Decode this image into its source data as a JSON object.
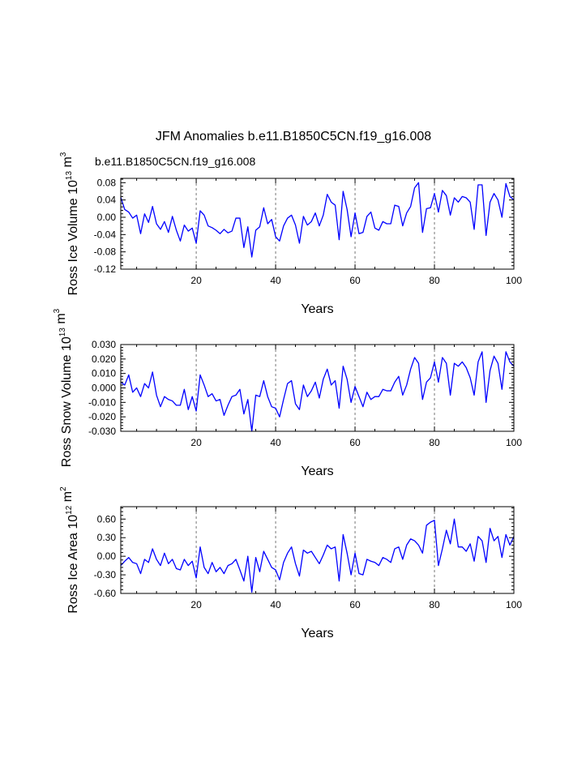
{
  "figure": {
    "title": "JFM Anomalies b.e11.B1850C5CN.f19_g16.008",
    "case_label": "b.e11.B1850C5CN.f19_g16.008",
    "case_label_color": "#0000ff",
    "line_color": "#0000ff"
  },
  "chart_data": [
    {
      "type": "line",
      "name": "ross-ice-volume",
      "title": "",
      "xlabel": "Years",
      "ylabel": "Ross Ice Volume",
      "yunit_prefix": "10",
      "yunit_exp": "13",
      "yunit_base": "m",
      "yunit_base_exp": "3",
      "xlim": [
        1,
        100
      ],
      "ylim": [
        -0.12,
        0.09
      ],
      "xticks": [
        20,
        40,
        60,
        80,
        100
      ],
      "yticks": [
        0.08,
        0.04,
        0.0,
        -0.04,
        -0.08,
        -0.12
      ],
      "ytick_labels": [
        "0.08",
        "0.04",
        "0.00",
        "-0.04",
        "-0.08",
        "-0.12"
      ],
      "vgrid": [
        20,
        40,
        60,
        80
      ],
      "series": [
        {
          "name": "b.e11.B1850C5CN.f19_g16.008",
          "values": [
            0.046,
            0.018,
            0.012,
            -0.002,
            0.005,
            -0.038,
            0.008,
            -0.012,
            0.025,
            -0.015,
            -0.028,
            -0.01,
            -0.035,
            0.002,
            -0.03,
            -0.055,
            -0.018,
            -0.032,
            -0.025,
            -0.06,
            0.015,
            0.005,
            -0.02,
            -0.024,
            -0.03,
            -0.038,
            -0.028,
            -0.036,
            -0.032,
            -0.002,
            -0.002,
            -0.07,
            -0.022,
            -0.092,
            -0.03,
            -0.022,
            0.022,
            -0.015,
            -0.005,
            -0.045,
            -0.055,
            -0.02,
            -0.002,
            0.005,
            -0.018,
            -0.06,
            0.002,
            -0.018,
            -0.01,
            0.01,
            -0.02,
            0.005,
            0.053,
            0.035,
            0.028,
            -0.052,
            0.06,
            0.018,
            -0.045,
            0.01,
            -0.038,
            -0.035,
            0.002,
            0.012,
            -0.025,
            -0.03,
            -0.01,
            -0.015,
            -0.015,
            0.028,
            0.025,
            -0.02,
            0.01,
            0.025,
            0.068,
            0.08,
            -0.035,
            0.02,
            0.022,
            0.055,
            0.012,
            0.062,
            0.05,
            0.005,
            0.045,
            0.035,
            0.048,
            0.045,
            0.035,
            -0.028,
            0.075,
            0.075,
            -0.042,
            0.035,
            0.055,
            0.04,
            0.0,
            0.078,
            0.048,
            0.04
          ]
        }
      ]
    },
    {
      "type": "line",
      "name": "ross-snow-volume",
      "title": "",
      "xlabel": "Years",
      "ylabel": "Ross Snow Volume",
      "yunit_prefix": "10",
      "yunit_exp": "13",
      "yunit_base": "m",
      "yunit_base_exp": "3",
      "xlim": [
        1,
        100
      ],
      "ylim": [
        -0.03,
        0.03
      ],
      "xticks": [
        20,
        40,
        60,
        80,
        100
      ],
      "yticks": [
        0.03,
        0.02,
        0.01,
        0.0,
        -0.01,
        -0.02,
        -0.03
      ],
      "ytick_labels": [
        "0.030",
        "0.020",
        "0.010",
        "0.000",
        "-0.010",
        "-0.020",
        "-0.030"
      ],
      "vgrid": [
        20,
        40,
        60,
        80
      ],
      "series": [
        {
          "name": "b.e11.B1850C5CN.f19_g16.008",
          "values": [
            0.004,
            0.002,
            0.009,
            -0.003,
            0.0,
            -0.006,
            0.003,
            0.0,
            0.011,
            -0.005,
            -0.013,
            -0.006,
            -0.008,
            -0.009,
            -0.012,
            -0.012,
            -0.001,
            -0.015,
            -0.006,
            -0.016,
            0.009,
            0.002,
            -0.006,
            -0.004,
            -0.009,
            -0.008,
            -0.019,
            -0.012,
            -0.006,
            -0.005,
            -0.001,
            -0.018,
            -0.008,
            -0.03,
            -0.005,
            -0.006,
            0.005,
            -0.006,
            -0.013,
            -0.014,
            -0.02,
            -0.008,
            0.003,
            0.005,
            -0.011,
            -0.015,
            0.002,
            -0.006,
            -0.002,
            0.004,
            -0.007,
            0.006,
            0.013,
            0.002,
            0.005,
            -0.014,
            0.015,
            0.006,
            -0.01,
            0.001,
            -0.006,
            -0.013,
            -0.003,
            -0.008,
            -0.006,
            -0.006,
            -0.001,
            -0.002,
            -0.002,
            0.004,
            0.008,
            -0.005,
            0.002,
            0.013,
            0.021,
            0.017,
            -0.008,
            0.004,
            0.007,
            0.018,
            0.004,
            0.021,
            0.017,
            -0.005,
            0.017,
            0.015,
            0.018,
            0.014,
            0.007,
            -0.005,
            0.018,
            0.025,
            -0.01,
            0.012,
            0.022,
            0.017,
            -0.001,
            0.025,
            0.018,
            0.015
          ]
        }
      ]
    },
    {
      "type": "line",
      "name": "ross-ice-area",
      "title": "",
      "xlabel": "Years",
      "ylabel": "Ross Ice Area",
      "yunit_prefix": "10",
      "yunit_exp": "12",
      "yunit_base": "m",
      "yunit_base_exp": "2",
      "xlim": [
        1,
        100
      ],
      "ylim": [
        -0.6,
        0.8
      ],
      "xticks": [
        20,
        40,
        60,
        80,
        100
      ],
      "yticks": [
        0.6,
        0.3,
        0.0,
        -0.3,
        -0.6
      ],
      "ytick_labels": [
        "0.60",
        "0.30",
        "0.00",
        "-0.30",
        "-0.60"
      ],
      "vgrid": [
        20,
        40,
        60,
        80
      ],
      "series": [
        {
          "name": "b.e11.B1850C5CN.f19_g16.008",
          "values": [
            -0.15,
            -0.08,
            -0.02,
            -0.1,
            -0.12,
            -0.28,
            -0.05,
            -0.1,
            0.12,
            -0.05,
            -0.15,
            0.05,
            -0.12,
            -0.05,
            -0.2,
            -0.22,
            -0.05,
            -0.15,
            -0.08,
            -0.35,
            0.15,
            -0.18,
            -0.28,
            -0.1,
            -0.25,
            -0.18,
            -0.28,
            -0.15,
            -0.12,
            -0.05,
            -0.22,
            -0.4,
            0.0,
            -0.58,
            -0.02,
            -0.25,
            0.08,
            -0.05,
            -0.18,
            -0.22,
            -0.38,
            -0.1,
            0.05,
            0.15,
            -0.12,
            -0.32,
            0.1,
            0.05,
            0.08,
            -0.02,
            -0.12,
            0.02,
            0.18,
            0.12,
            0.15,
            -0.4,
            0.35,
            0.05,
            -0.3,
            0.05,
            -0.28,
            -0.3,
            -0.05,
            -0.08,
            -0.1,
            -0.15,
            -0.02,
            -0.05,
            -0.1,
            0.12,
            0.15,
            -0.05,
            0.18,
            0.28,
            0.25,
            0.18,
            0.05,
            0.5,
            0.55,
            0.58,
            -0.15,
            0.12,
            0.42,
            0.2,
            0.6,
            0.15,
            0.15,
            0.08,
            0.2,
            -0.08,
            0.32,
            0.25,
            -0.1,
            0.45,
            0.25,
            0.32,
            -0.02,
            0.35,
            0.18,
            0.32
          ]
        }
      ]
    }
  ]
}
